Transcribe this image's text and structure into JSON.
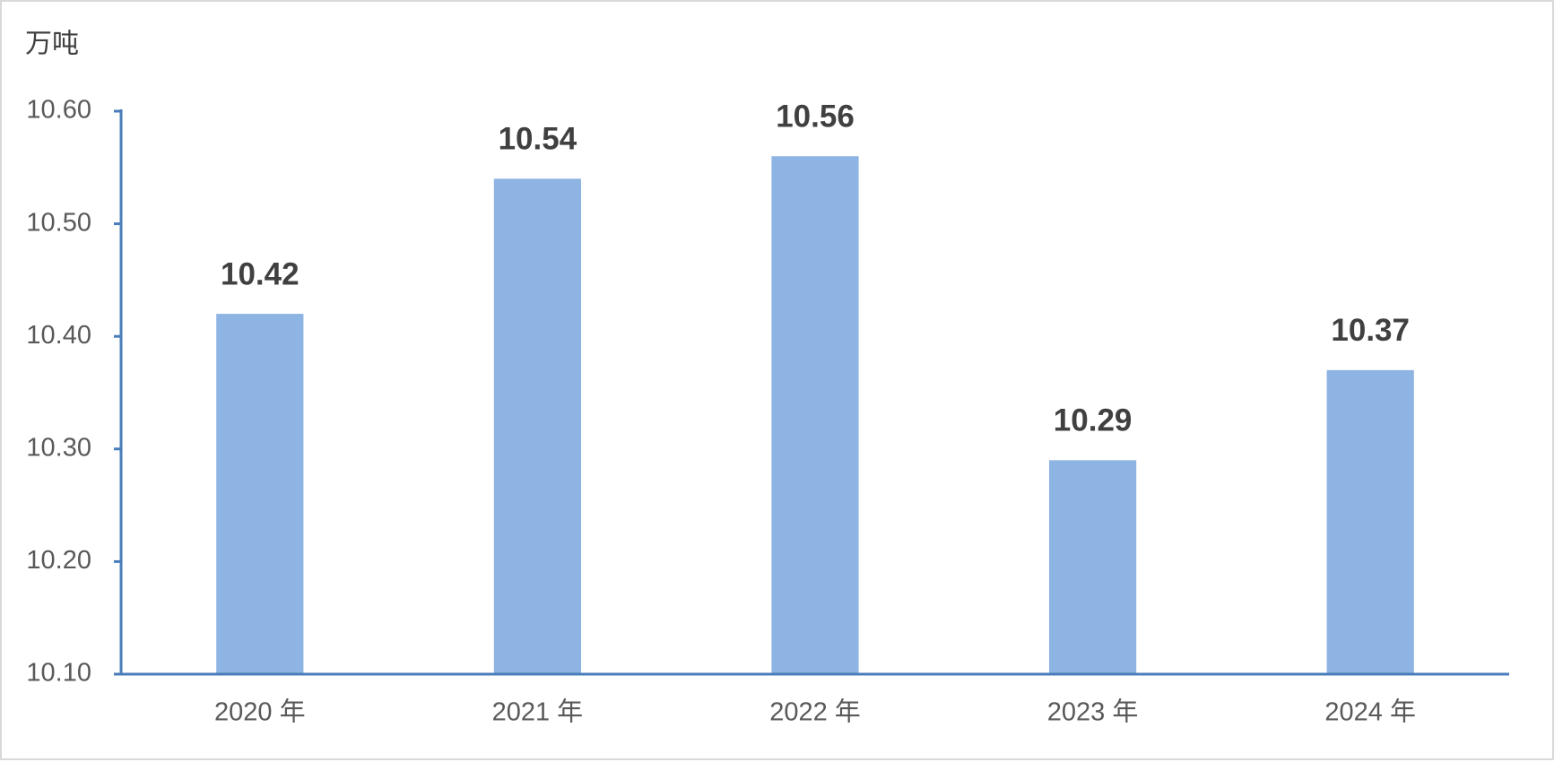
{
  "chart_data": {
    "type": "bar",
    "y_label": "万吨",
    "categories": [
      "2020 年",
      "2021 年",
      "2022 年",
      "2023 年",
      "2024 年"
    ],
    "values": [
      10.42,
      10.54,
      10.56,
      10.29,
      10.37
    ],
    "color": "#8eb4e3",
    "ylim": [
      10.1,
      10.6
    ],
    "yticks": [
      {
        "value": 10.1,
        "label": "10.10"
      },
      {
        "value": 10.2,
        "label": "10.20"
      },
      {
        "value": 10.3,
        "label": "10.30"
      },
      {
        "value": 10.4,
        "label": "10.40"
      },
      {
        "value": 10.5,
        "label": "10.50"
      },
      {
        "value": 10.6,
        "label": "10.60"
      }
    ]
  }
}
